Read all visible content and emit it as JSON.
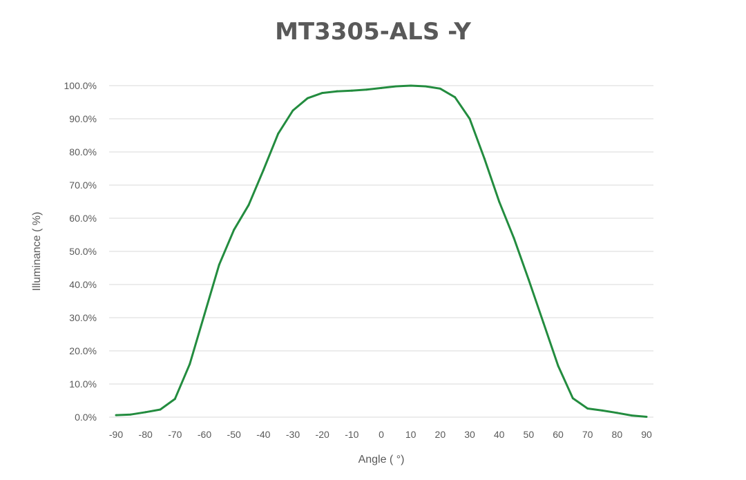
{
  "chart_data": {
    "type": "line",
    "title": "MT3305-ALS -Y",
    "xlabel": "Angle ( °)",
    "ylabel": "Illuminance ( %)",
    "xlim": [
      -90,
      90
    ],
    "ylim": [
      0,
      100
    ],
    "x_ticks": [
      "-90",
      "-80",
      "-70",
      "-60",
      "-50",
      "-40",
      "-30",
      "-20",
      "-10",
      "0",
      "10",
      "20",
      "30",
      "40",
      "50",
      "60",
      "70",
      "80",
      "90"
    ],
    "y_ticks": [
      "0.0%",
      "10.0%",
      "20.0%",
      "30.0%",
      "40.0%",
      "50.0%",
      "60.0%",
      "70.0%",
      "80.0%",
      "90.0%",
      "100.0%"
    ],
    "grid": "horizontal",
    "legend": "none",
    "color": "#238C3F",
    "series": [
      {
        "x": [
          -90,
          -85,
          -80,
          -75,
          -70,
          -65,
          -60,
          -55,
          -50,
          -45,
          -40,
          -35,
          -30,
          -25,
          -20,
          -15,
          -10,
          -5,
          0,
          5,
          10,
          15,
          20,
          25,
          30,
          35,
          40,
          45,
          50,
          55,
          60,
          65,
          70,
          75,
          80,
          85,
          90
        ],
        "values": [
          0.6,
          0.8,
          1.5,
          2.3,
          5.5,
          16,
          31,
          46,
          56.5,
          64,
          74.5,
          85.5,
          92.5,
          96.2,
          97.8,
          98.3,
          98.5,
          98.8,
          99.3,
          99.8,
          100,
          99.8,
          99.1,
          96.5,
          90,
          78,
          65,
          54,
          41.5,
          28.5,
          15.5,
          5.7,
          2.6,
          2,
          1.3,
          0.5,
          0.1
        ]
      }
    ]
  }
}
